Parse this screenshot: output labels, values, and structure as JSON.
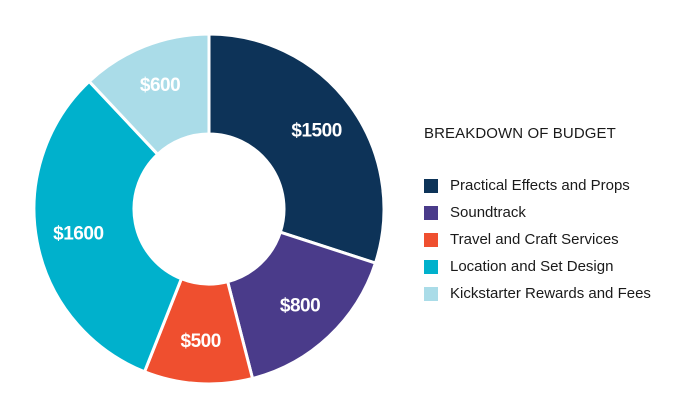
{
  "chart_data": {
    "type": "pie",
    "title": "BREAKDOWN OF BUDGET",
    "categories": [
      "Practical Effects and Props",
      "Soundtrack",
      "Travel and Craft Services",
      "Location and Set Design",
      "Kickstarter Rewards and Fees"
    ],
    "values": [
      1500,
      800,
      500,
      1600,
      600
    ],
    "data_labels": [
      "$1500",
      "$800",
      "$500",
      "$1600",
      "$600"
    ],
    "colors": [
      "#0d3358",
      "#4a3b8a",
      "#ef4f2f",
      "#00b1cc",
      "#aadce8"
    ],
    "donut": true,
    "legend_position": "right"
  }
}
